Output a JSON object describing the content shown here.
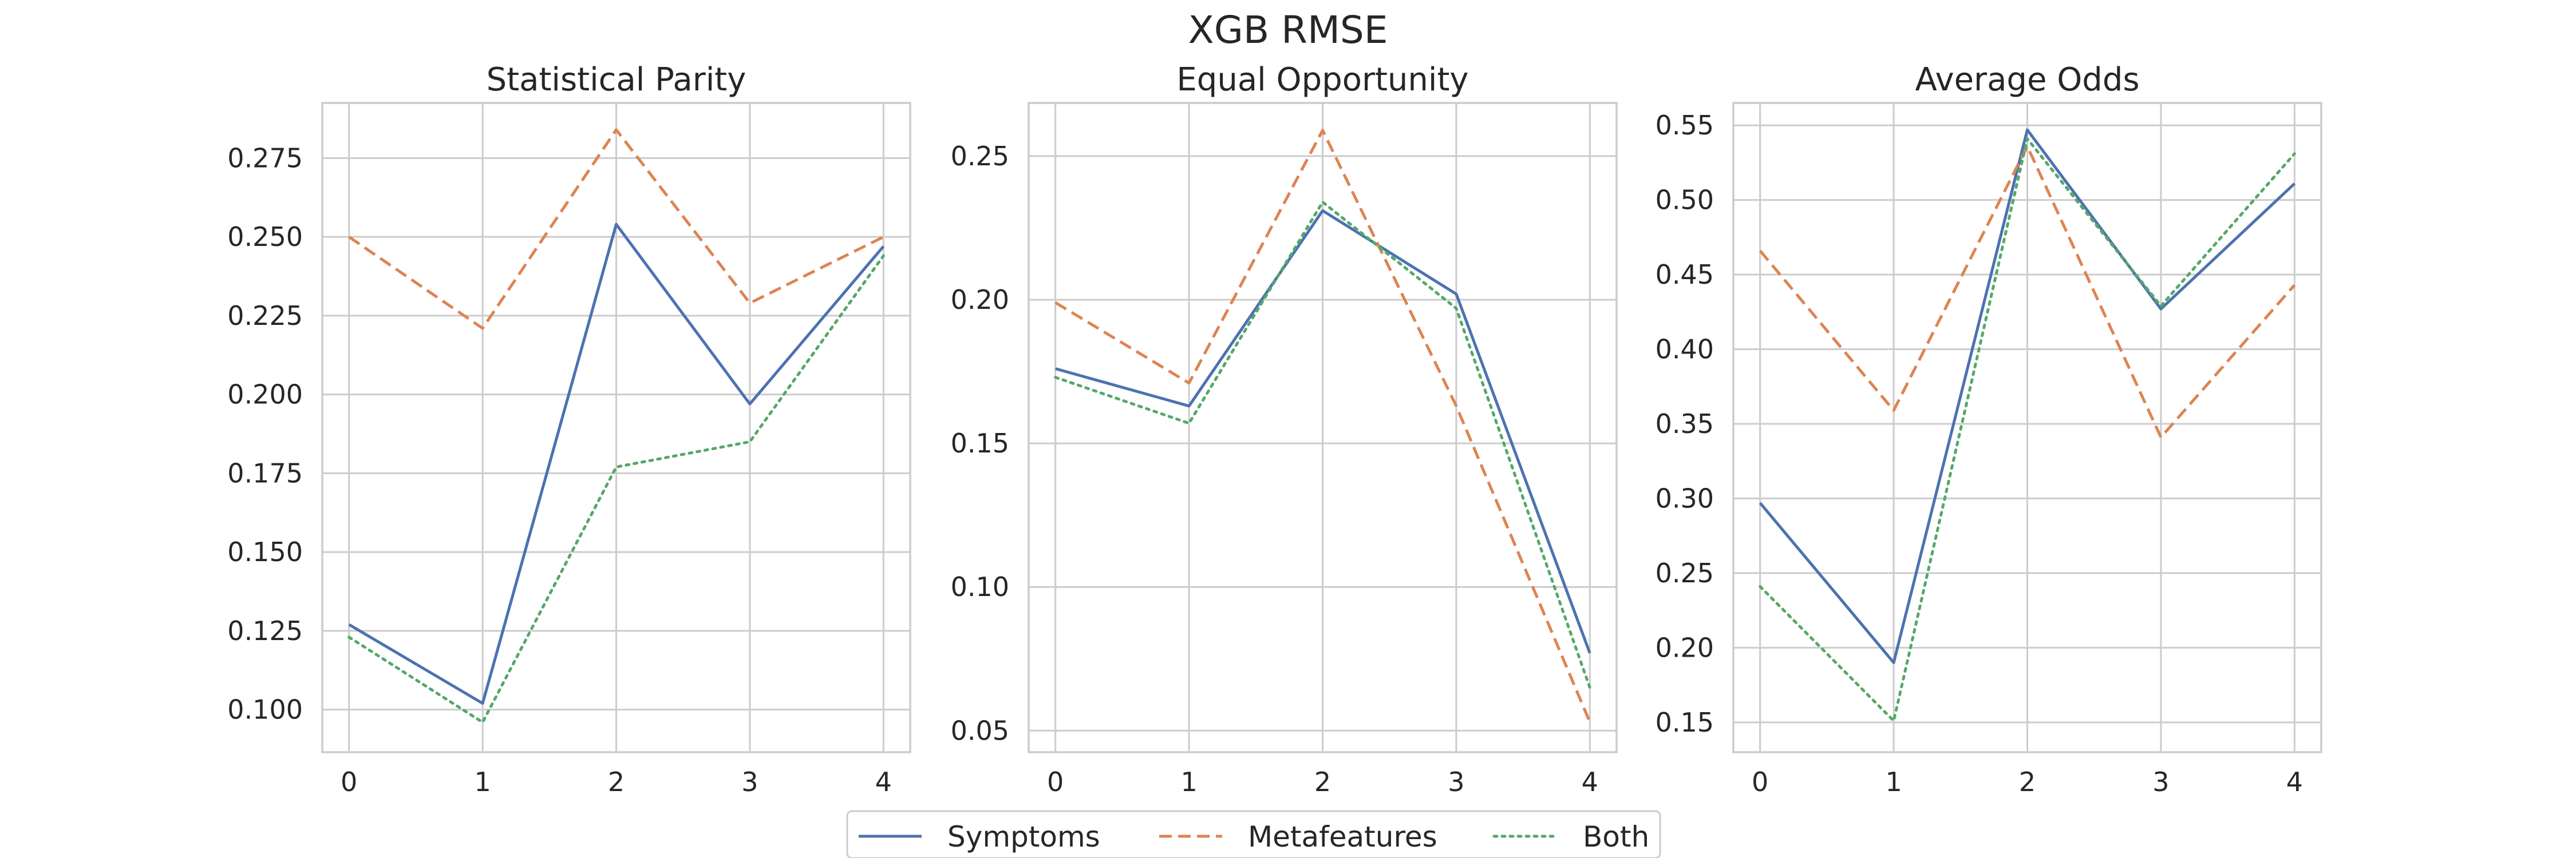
{
  "figure": {
    "suptitle": "XGB RMSE"
  },
  "legend": {
    "placement": "bottom-center",
    "entries": [
      {
        "name": "Symptoms",
        "color": "#4c72b0",
        "style": "solid"
      },
      {
        "name": "Metafeatures",
        "color": "#dd8452",
        "style": "dashed"
      },
      {
        "name": "Both",
        "color": "#55a868",
        "style": "dotted"
      }
    ]
  },
  "chart_data": [
    {
      "type": "line",
      "title": "Statistical Parity",
      "xlabel": "",
      "ylabel": "",
      "grid": true,
      "x": [
        0,
        1,
        2,
        3,
        4
      ],
      "xlim": [
        -0.2,
        4.2
      ],
      "ylim": [
        0.0865,
        0.2925
      ],
      "yticks": [
        0.1,
        0.125,
        0.15,
        0.175,
        0.2,
        0.225,
        0.25,
        0.275
      ],
      "ytick_labels": [
        "0.100",
        "0.125",
        "0.150",
        "0.175",
        "0.200",
        "0.225",
        "0.250",
        "0.275"
      ],
      "series": [
        {
          "name": "Symptoms",
          "values": [
            0.127,
            0.102,
            0.254,
            0.197,
            0.247
          ]
        },
        {
          "name": "Metafeatures",
          "values": [
            0.25,
            0.221,
            0.284,
            0.229,
            0.25
          ]
        },
        {
          "name": "Both",
          "values": [
            0.123,
            0.096,
            0.177,
            0.185,
            0.244
          ]
        }
      ]
    },
    {
      "type": "line",
      "title": "Equal Opportunity",
      "xlabel": "",
      "ylabel": "",
      "grid": true,
      "x": [
        0,
        1,
        2,
        3,
        4
      ],
      "xlim": [
        -0.2,
        4.2
      ],
      "ylim": [
        0.0425,
        0.2685
      ],
      "yticks": [
        0.05,
        0.1,
        0.15,
        0.2,
        0.25
      ],
      "ytick_labels": [
        "0.05",
        "0.10",
        "0.15",
        "0.20",
        "0.25"
      ],
      "series": [
        {
          "name": "Symptoms",
          "values": [
            0.176,
            0.163,
            0.231,
            0.202,
            0.077
          ]
        },
        {
          "name": "Metafeatures",
          "values": [
            0.199,
            0.171,
            0.259,
            0.163,
            0.053
          ]
        },
        {
          "name": "Both",
          "values": [
            0.173,
            0.157,
            0.234,
            0.197,
            0.065
          ]
        }
      ]
    },
    {
      "type": "line",
      "title": "Average Odds",
      "xlabel": "",
      "ylabel": "",
      "grid": true,
      "x": [
        0,
        1,
        2,
        3,
        4
      ],
      "xlim": [
        -0.2,
        4.2
      ],
      "ylim": [
        0.13,
        0.565
      ],
      "yticks": [
        0.15,
        0.2,
        0.25,
        0.3,
        0.35,
        0.4,
        0.45,
        0.5,
        0.55
      ],
      "ytick_labels": [
        "0.15",
        "0.20",
        "0.25",
        "0.30",
        "0.35",
        "0.40",
        "0.45",
        "0.50",
        "0.55"
      ],
      "series": [
        {
          "name": "Symptoms",
          "values": [
            0.297,
            0.19,
            0.547,
            0.427,
            0.511
          ]
        },
        {
          "name": "Metafeatures",
          "values": [
            0.466,
            0.359,
            0.536,
            0.341,
            0.443
          ]
        },
        {
          "name": "Both",
          "values": [
            0.241,
            0.151,
            0.541,
            0.429,
            0.531
          ]
        }
      ]
    }
  ]
}
